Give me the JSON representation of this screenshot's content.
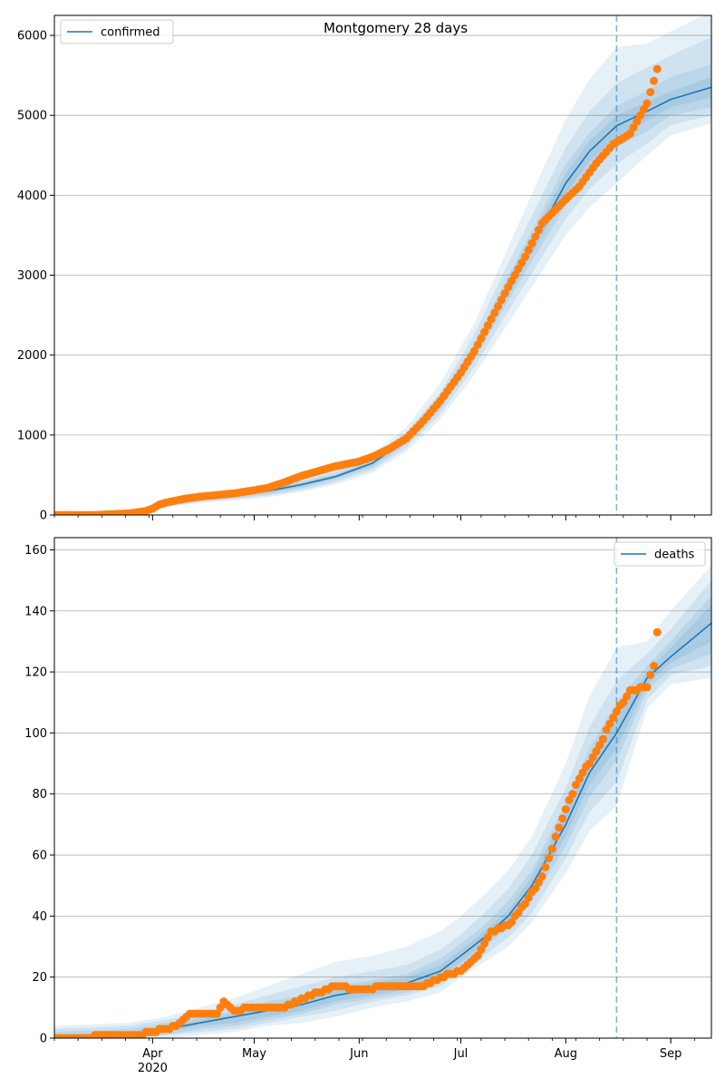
{
  "colors": {
    "model_line": "#1f77b4",
    "observed_points": "#ff7f0e",
    "band": "#1f77b4",
    "grid": "#b0b0b0",
    "vline": "#1f77b4"
  },
  "chart_data": [
    {
      "type": "line",
      "title": "Montgomery 28 days",
      "legend": {
        "label": "confirmed",
        "placement": "top-left"
      },
      "x_axis": {
        "start": "2020-03-03",
        "end": "2020-09-13",
        "ticks": [
          {
            "date": "2020-04-01",
            "label": "Apr",
            "sublabel": "2020"
          },
          {
            "date": "2020-05-01",
            "label": "May"
          },
          {
            "date": "2020-06-01",
            "label": "Jun"
          },
          {
            "date": "2020-07-01",
            "label": "Jul"
          },
          {
            "date": "2020-08-01",
            "label": "Aug"
          },
          {
            "date": "2020-09-01",
            "label": "Sep"
          }
        ],
        "show_labels": false
      },
      "ylim": [
        0,
        6250
      ],
      "yticks": [
        0,
        1000,
        2000,
        3000,
        4000,
        5000,
        6000
      ],
      "grid": "horizontal",
      "forecast_start": "2020-08-16",
      "model": {
        "dates": [
          "2020-03-03",
          "2020-03-20",
          "2020-03-28",
          "2020-04-05",
          "2020-04-15",
          "2020-04-25",
          "2020-05-05",
          "2020-05-15",
          "2020-05-25",
          "2020-06-05",
          "2020-06-15",
          "2020-06-25",
          "2020-07-05",
          "2020-07-15",
          "2020-07-25",
          "2020-08-01",
          "2020-08-08",
          "2020-08-16",
          "2020-08-25",
          "2020-09-01",
          "2020-09-13"
        ],
        "median": [
          0,
          10,
          40,
          150,
          210,
          250,
          300,
          380,
          480,
          650,
          950,
          1400,
          2050,
          2850,
          3600,
          4150,
          4550,
          4870,
          5050,
          5200,
          5350
        ],
        "bands": [
          {
            "lower": [
              0,
              0,
              20,
              100,
              150,
              180,
              220,
              290,
              380,
              530,
              800,
              1200,
              1750,
              2400,
              3050,
              3500,
              3850,
              4150,
              4500,
              4750,
              4900
            ],
            "upper": [
              0,
              20,
              70,
              200,
              270,
              320,
              380,
              470,
              580,
              770,
              1100,
              1650,
              2400,
              3350,
              4300,
              4950,
              5450,
              5850,
              5900,
              6050,
              6300
            ]
          },
          {
            "lower": [
              0,
              0,
              25,
              110,
              165,
              200,
              240,
              310,
              410,
              565,
              845,
              1265,
              1850,
              2550,
              3230,
              3700,
              4080,
              4390,
              4650,
              4880,
              5000
            ],
            "upper": [
              0,
              18,
              60,
              185,
              250,
              295,
              355,
              440,
              545,
              725,
              1045,
              1535,
              2260,
              3150,
              4000,
              4600,
              5050,
              5400,
              5600,
              5750,
              5980
            ]
          },
          {
            "lower": [
              0,
              0,
              30,
              125,
              180,
              215,
              260,
              335,
              440,
              595,
              890,
              1320,
              1940,
              2680,
              3380,
              3880,
              4280,
              4600,
              4800,
              5000,
              5100
            ],
            "upper": [
              0,
              15,
              52,
              172,
              235,
              278,
              335,
              415,
              515,
              690,
              1000,
              1470,
              2150,
              2990,
              3800,
              4390,
              4780,
              5120,
              5300,
              5480,
              5640
            ]
          },
          {
            "lower": [
              0,
              0,
              35,
              138,
              195,
              235,
              280,
              355,
              460,
              620,
              920,
              1360,
              1990,
              2760,
              3490,
              4020,
              4420,
              4740,
              4930,
              5100,
              5220
            ],
            "upper": [
              0,
              13,
              47,
              162,
              225,
              265,
              320,
              400,
              500,
              675,
              975,
              1435,
              2105,
              2935,
              3705,
              4275,
              4680,
              5000,
              5170,
              5300,
              5480
            ]
          }
        ]
      },
      "observed": {
        "dates": [
          "2020-03-03",
          "2020-03-15",
          "2020-03-25",
          "2020-03-30",
          "2020-04-01",
          "2020-04-03",
          "2020-04-05",
          "2020-04-10",
          "2020-04-15",
          "2020-04-20",
          "2020-04-25",
          "2020-05-01",
          "2020-05-05",
          "2020-05-10",
          "2020-05-15",
          "2020-05-20",
          "2020-05-25",
          "2020-06-01",
          "2020-06-05",
          "2020-06-10",
          "2020-06-15",
          "2020-06-20",
          "2020-06-25",
          "2020-07-01",
          "2020-07-05",
          "2020-07-10",
          "2020-07-15",
          "2020-07-20",
          "2020-07-25",
          "2020-08-01",
          "2020-08-05",
          "2020-08-10",
          "2020-08-15",
          "2020-08-20",
          "2020-08-25",
          "2020-08-27",
          "2020-08-28"
        ],
        "values": [
          0,
          0,
          20,
          50,
          80,
          130,
          155,
          200,
          230,
          250,
          270,
          310,
          340,
          410,
          490,
          550,
          610,
          670,
          730,
          830,
          960,
          1180,
          1430,
          1780,
          2050,
          2450,
          2850,
          3230,
          3650,
          3950,
          4110,
          4400,
          4640,
          4770,
          5150,
          5430,
          5580
        ]
      }
    },
    {
      "type": "line",
      "title": "",
      "legend": {
        "label": "deaths",
        "placement": "top-right"
      },
      "x_axis": {
        "start": "2020-03-03",
        "end": "2020-09-13",
        "ticks": [
          {
            "date": "2020-04-01",
            "label": "Apr",
            "sublabel": "2020"
          },
          {
            "date": "2020-05-01",
            "label": "May"
          },
          {
            "date": "2020-06-01",
            "label": "Jun"
          },
          {
            "date": "2020-07-01",
            "label": "Jul"
          },
          {
            "date": "2020-08-01",
            "label": "Aug"
          },
          {
            "date": "2020-09-01",
            "label": "Sep"
          }
        ],
        "show_labels": true
      },
      "ylim": [
        0,
        164
      ],
      "yticks": [
        0,
        20,
        40,
        60,
        80,
        100,
        120,
        140,
        160
      ],
      "grid": "horizontal",
      "forecast_start": "2020-08-16",
      "model": {
        "dates": [
          "2020-03-03",
          "2020-03-25",
          "2020-04-05",
          "2020-04-15",
          "2020-04-25",
          "2020-05-05",
          "2020-05-15",
          "2020-05-25",
          "2020-06-05",
          "2020-06-15",
          "2020-06-25",
          "2020-07-01",
          "2020-07-08",
          "2020-07-15",
          "2020-07-22",
          "2020-08-01",
          "2020-08-08",
          "2020-08-16",
          "2020-08-25",
          "2020-09-01",
          "2020-09-13"
        ],
        "median": [
          0,
          1,
          3,
          5,
          7,
          9,
          11,
          14,
          16,
          18,
          22,
          27,
          33,
          40,
          50,
          70,
          87,
          100,
          118,
          125,
          136
        ],
        "bands": [
          {
            "lower": [
              0,
              0,
              0,
              1,
              2,
              4,
              5,
              7,
              10,
              12,
              15,
              20,
              25,
              30,
              38,
              54,
              68,
              76,
              108,
              116,
              118
            ],
            "upper": [
              4,
              5,
              7,
              10,
              13,
              17,
              21,
              25,
              27,
              30,
              35,
              40,
              47,
              55,
              66,
              90,
              112,
              128,
              130,
              140,
              155
            ]
          },
          {
            "lower": [
              0,
              0,
              1,
              2,
              3,
              5,
              7,
              9,
              12,
              14,
              17,
              22,
              27,
              33,
              41,
              59,
              74,
              84,
              111,
              119,
              122
            ],
            "upper": [
              3,
              4,
              6,
              8,
              11,
              14,
              17,
              20,
              22,
              24,
              29,
              34,
              41,
              49,
              60,
              82,
              102,
              117,
              126,
              134,
              150
            ]
          },
          {
            "lower": [
              0,
              0,
              1,
              3,
              4,
              6,
              8,
              11,
              13,
              15,
              19,
              24,
              30,
              36,
              45,
              63,
              79,
              91,
              114,
              121,
              126
            ],
            "upper": [
              2,
              3,
              5,
              7,
              9,
              12,
              14,
              17,
              19,
              21,
              26,
              31,
              37,
              45,
              55,
              77,
              95,
              110,
              122,
              130,
              145
            ]
          },
          {
            "lower": [
              0,
              0,
              2,
              4,
              5,
              7,
              9,
              12,
              14,
              16,
              20,
              25,
              31,
              38,
              47,
              66,
              83,
              95,
              116,
              123,
              130
            ],
            "upper": [
              1,
              2,
              4,
              6,
              8,
              10,
              13,
              16,
              18,
              20,
              24,
              29,
              35,
              42,
              53,
              74,
              91,
              105,
              120,
              128,
              142
            ]
          }
        ]
      },
      "observed": {
        "dates": [
          "2020-03-03",
          "2020-03-27",
          "2020-04-01",
          "2020-04-08",
          "2020-04-12",
          "2020-04-20",
          "2020-04-22",
          "2020-04-25",
          "2020-05-01",
          "2020-05-10",
          "2020-05-15",
          "2020-05-20",
          "2020-05-25",
          "2020-06-01",
          "2020-06-10",
          "2020-06-20",
          "2020-06-25",
          "2020-07-01",
          "2020-07-06",
          "2020-07-10",
          "2020-07-15",
          "2020-07-20",
          "2020-07-25",
          "2020-08-01",
          "2020-08-05",
          "2020-08-10",
          "2020-08-15",
          "2020-08-20",
          "2020-08-25",
          "2020-08-27",
          "2020-08-28"
        ],
        "values": [
          0,
          1,
          2,
          4,
          8,
          8,
          12,
          9,
          10,
          10,
          13,
          15,
          17,
          16,
          17,
          17,
          20,
          22,
          27,
          35,
          37,
          44,
          53,
          75,
          85,
          94,
          105,
          114,
          115,
          122,
          133
        ]
      }
    }
  ]
}
